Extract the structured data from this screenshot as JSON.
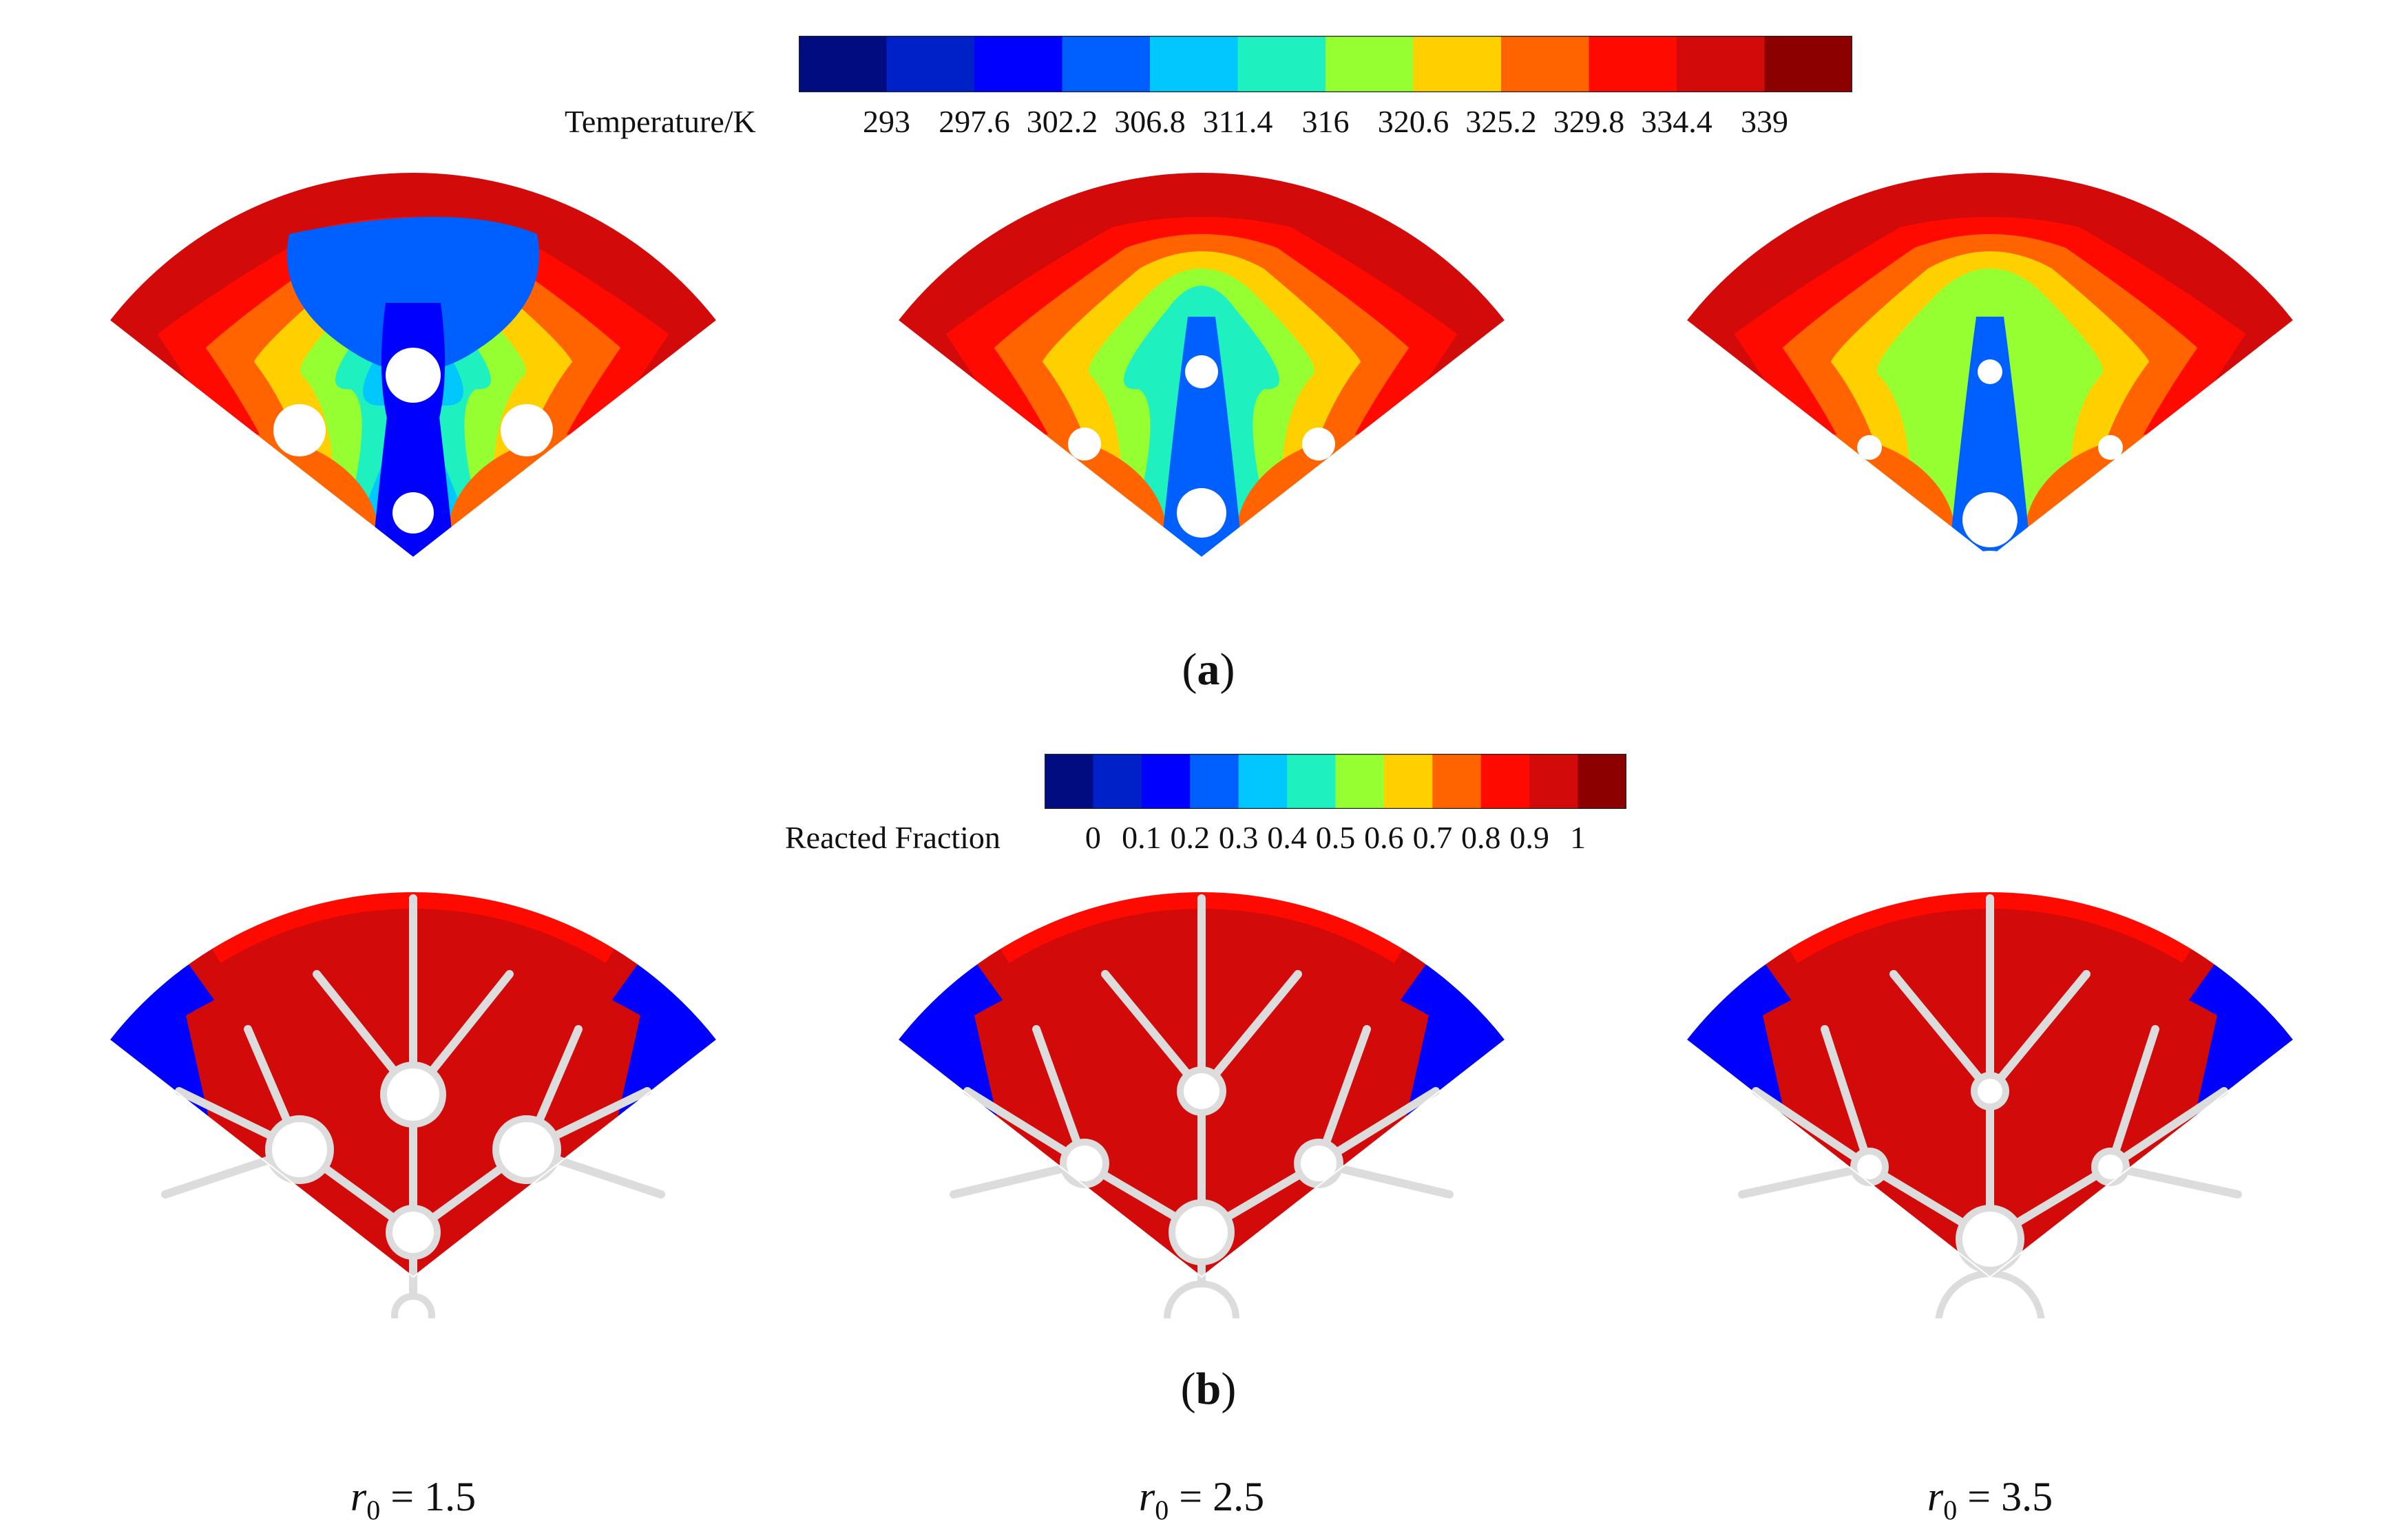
{
  "colorbar_temperature": {
    "label": "Temperature/K",
    "ticks": [
      "293",
      "297.6",
      "302.2",
      "306.8",
      "311.4",
      "316",
      "320.6",
      "325.2",
      "329.8",
      "334.4",
      "339"
    ],
    "colors": [
      "#000c80",
      "#0020c8",
      "#0000ff",
      "#0060ff",
      "#00c8ff",
      "#1ef0c0",
      "#96ff32",
      "#ffd000",
      "#ff6400",
      "#ff0a00",
      "#d20a0a",
      "#8c0000"
    ]
  },
  "colorbar_fraction": {
    "label": "Reacted Fraction",
    "ticks": [
      "0",
      "0.1",
      "0.2",
      "0.3",
      "0.4",
      "0.5",
      "0.6",
      "0.7",
      "0.8",
      "0.9",
      "1"
    ],
    "colors": [
      "#000c80",
      "#0020c8",
      "#0000ff",
      "#0060ff",
      "#00c8ff",
      "#1ef0c0",
      "#96ff32",
      "#ffd000",
      "#ff6400",
      "#ff0a00",
      "#d20a0a",
      "#8c0000"
    ]
  },
  "panel_a": {
    "open": "(",
    "letter": "a",
    "close": ")"
  },
  "panel_b": {
    "open": "(",
    "letter": "b",
    "close": ")"
  },
  "cases": [
    {
      "symbol": "r",
      "sub": "0",
      "eq": " = 1.5"
    },
    {
      "symbol": "r",
      "sub": "0",
      "eq": " = 2.5"
    },
    {
      "symbol": "r",
      "sub": "0",
      "eq": " = 3.5"
    }
  ]
}
